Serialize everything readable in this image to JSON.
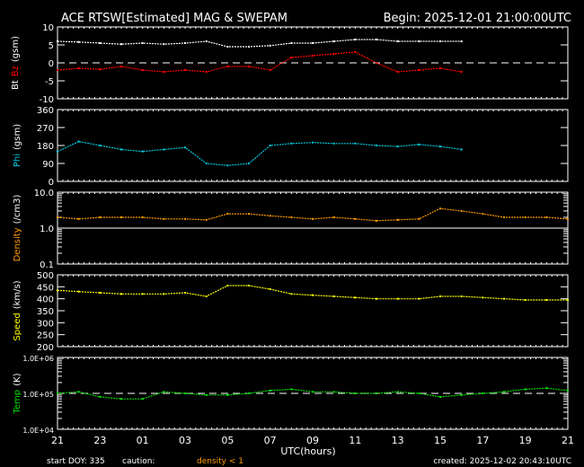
{
  "header": {
    "title": "ACE RTSW[Estimated] MAG & SWEPAM",
    "begin": "Begin: 2025-12-01 21:00:00UTC"
  },
  "footer": {
    "start_doy": "start DOY: 335",
    "caution": "caution:",
    "caution_note": "density < 1",
    "created": "created: 2025-12-02 20:43:10UTC"
  },
  "colors": {
    "bt": "#ffffff",
    "bz": "#ff0000",
    "phi": "#00c8dc",
    "density": "#ff9900",
    "speed": "#ffff00",
    "temp": "#00e000",
    "axes": "#ffffff",
    "background": "#000000"
  },
  "chart_data": {
    "type": "line",
    "xlabel": "UTC(hours)",
    "x_tick_labels": [
      "21",
      "23",
      "01",
      "03",
      "05",
      "07",
      "09",
      "11",
      "13",
      "15",
      "17",
      "19",
      "21"
    ],
    "x": "hours since 2025-12-01 21:00 UTC, hourly samples",
    "panels": [
      {
        "id": "mag",
        "ylabel_parts": [
          "Bt",
          "Bz",
          "(gsm)"
        ],
        "ylim": [
          -10,
          10
        ],
        "scale": "linear",
        "ticks": [
          "10",
          "5",
          "0",
          "-5",
          "-10"
        ],
        "tick_values": [
          10,
          5,
          0,
          -5,
          -10
        ],
        "reference_line": {
          "value": 0,
          "style": "dashed"
        },
        "series": [
          {
            "name": "Bt",
            "color": "#ffffff",
            "values": [
              6,
              5.8,
              5.5,
              5.2,
              5.5,
              5.2,
              5.5,
              6,
              4.5,
              4.5,
              4.8,
              5.5,
              5.5,
              6,
              6.5,
              6.5,
              6,
              6,
              6,
              6
            ]
          },
          {
            "name": "Bz",
            "color": "#ff0000",
            "values": [
              -2,
              -1.5,
              -1.8,
              -1,
              -2,
              -2.5,
              -2,
              -2.5,
              -1,
              -1,
              -2,
              1.5,
              2,
              2.5,
              3,
              0,
              -2.5,
              -2,
              -1.5,
              -2.5
            ]
          }
        ]
      },
      {
        "id": "phi",
        "ylabel_parts": [
          "Phi",
          "(gsm)"
        ],
        "ylim": [
          0,
          360
        ],
        "scale": "linear",
        "ticks": [
          "360",
          "270",
          "180",
          "90",
          "0"
        ],
        "tick_values": [
          360,
          270,
          180,
          90,
          0
        ],
        "series": [
          {
            "name": "Phi",
            "color": "#00c8dc",
            "values": [
              150,
              200,
              180,
              160,
              150,
              160,
              170,
              90,
              80,
              90,
              180,
              190,
              195,
              190,
              190,
              180,
              175,
              185,
              175,
              160
            ]
          }
        ]
      },
      {
        "id": "density",
        "ylabel_parts": [
          "Density",
          "(/cm3)"
        ],
        "ylim": [
          0.1,
          10
        ],
        "scale": "log",
        "ticks": [
          "10.0",
          "1.0",
          "0.1"
        ],
        "tick_values": [
          10,
          1,
          0.1
        ],
        "reference_line": {
          "value": 1,
          "style": "solid"
        },
        "series": [
          {
            "name": "Density",
            "color": "#ff9900",
            "values": [
              2,
              1.8,
              2,
              2,
              2,
              1.8,
              1.8,
              1.7,
              2.5,
              2.5,
              2.2,
              2,
              1.8,
              2,
              1.8,
              1.6,
              1.7,
              1.8,
              3.5,
              3,
              2.5,
              2,
              2,
              2,
              1.8
            ]
          }
        ]
      },
      {
        "id": "speed",
        "ylabel_parts": [
          "Speed",
          "(km/s)"
        ],
        "ylim": [
          200,
          500
        ],
        "scale": "linear",
        "ticks": [
          "500",
          "450",
          "400",
          "350",
          "300",
          "250",
          "200"
        ],
        "tick_values": [
          500,
          450,
          400,
          350,
          300,
          250,
          200
        ],
        "series": [
          {
            "name": "Speed",
            "color": "#ffff00",
            "values": [
              435,
              430,
              425,
              420,
              420,
              420,
              425,
              410,
              455,
              455,
              440,
              420,
              415,
              410,
              405,
              400,
              400,
              400,
              410,
              410,
              405,
              400,
              395,
              395,
              395
            ]
          }
        ]
      },
      {
        "id": "temp",
        "ylabel_parts": [
          "Temp",
          "(K)"
        ],
        "ylim": [
          10000,
          1000000
        ],
        "scale": "log",
        "ticks": [
          "1.0E+06",
          "1.0E+05",
          "1.0E+04"
        ],
        "tick_values": [
          1000000,
          100000,
          10000
        ],
        "reference_line": {
          "value": 100000,
          "style": "dashed"
        },
        "series": [
          {
            "name": "Temp",
            "color": "#00e000",
            "values": [
              100000,
              110000,
              80000,
              70000,
              70000,
              110000,
              100000,
              90000,
              90000,
              100000,
              120000,
              130000,
              110000,
              110000,
              100000,
              100000,
              110000,
              100000,
              80000,
              90000,
              100000,
              110000,
              130000,
              140000,
              120000
            ]
          }
        ]
      }
    ]
  }
}
